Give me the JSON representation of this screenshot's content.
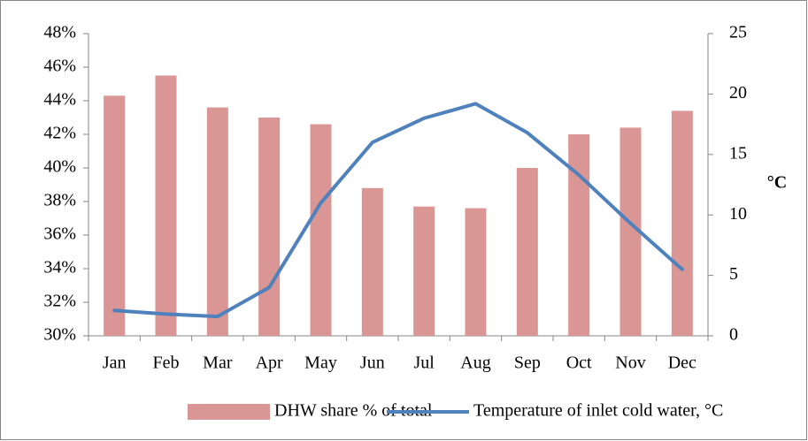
{
  "chart_data": {
    "type": "bar-line",
    "categories": [
      "Jan",
      "Feb",
      "Mar",
      "Apr",
      "May",
      "Jun",
      "Jul",
      "Aug",
      "Sep",
      "Oct",
      "Nov",
      "Dec"
    ],
    "series": [
      {
        "name": "DHW share % of total",
        "type": "bar",
        "color": "#d99694",
        "values": [
          44.3,
          45.5,
          43.6,
          43.0,
          42.6,
          38.8,
          37.7,
          37.6,
          40.0,
          42.0,
          42.4,
          43.4
        ]
      },
      {
        "name": "Temperature of inlet cold water, °C",
        "type": "line",
        "axis": "y2",
        "color": "#4f81bd",
        "values": [
          2.1,
          1.8,
          1.6,
          4.0,
          11.0,
          16.0,
          18.0,
          19.2,
          16.8,
          13.3,
          9.3,
          5.5
        ]
      }
    ],
    "ylim": [
      30,
      48
    ],
    "yticks": [
      {
        "value": 30,
        "label": "30%"
      },
      {
        "value": 32,
        "label": "32%"
      },
      {
        "value": 34,
        "label": "34%"
      },
      {
        "value": 36,
        "label": "36%"
      },
      {
        "value": 38,
        "label": "38%"
      },
      {
        "value": 40,
        "label": "40%"
      },
      {
        "value": 42,
        "label": "42%"
      },
      {
        "value": 44,
        "label": "44%"
      },
      {
        "value": 46,
        "label": "46%"
      },
      {
        "value": 48,
        "label": "48%"
      }
    ],
    "y2lim": [
      0,
      25
    ],
    "y2ticks": [
      0,
      5,
      10,
      15,
      20,
      25
    ],
    "y2label": "°C",
    "grid": false,
    "legend": "bottom"
  }
}
